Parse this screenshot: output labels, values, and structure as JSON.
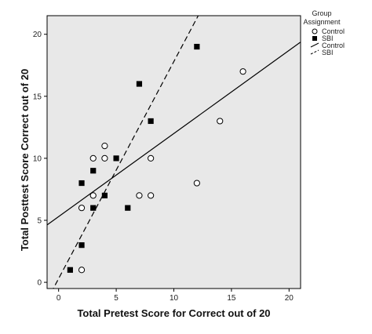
{
  "chart_data": {
    "type": "scatter",
    "xlabel": "Total Pretest Score for Correct out of 20",
    "ylabel": "Total Posttest Score Correct out of 20",
    "xlim": [
      -1,
      21
    ],
    "ylim": [
      -0.5,
      21.5
    ],
    "x_ticks": [
      0,
      5,
      10,
      15,
      20
    ],
    "y_ticks": [
      0,
      5,
      10,
      15,
      20
    ],
    "grid": false,
    "background": "#e8e8e8",
    "legend": {
      "title_line1": "Group",
      "title_line2": "Assignment",
      "placement": "right",
      "entries": [
        {
          "label": "Control",
          "kind": "marker",
          "symbol": "open-circle"
        },
        {
          "label": "SBI",
          "kind": "marker",
          "symbol": "filled-square"
        },
        {
          "label": "Control",
          "kind": "line",
          "style": "solid"
        },
        {
          "label": "SBI",
          "kind": "line",
          "style": "dashed"
        }
      ]
    },
    "series": [
      {
        "name": "Control",
        "marker": "open-circle",
        "points": [
          {
            "x": 2,
            "y": 1
          },
          {
            "x": 2,
            "y": 6
          },
          {
            "x": 3,
            "y": 7
          },
          {
            "x": 3,
            "y": 10
          },
          {
            "x": 4,
            "y": 10
          },
          {
            "x": 4,
            "y": 11
          },
          {
            "x": 7,
            "y": 7
          },
          {
            "x": 8,
            "y": 7
          },
          {
            "x": 8,
            "y": 10
          },
          {
            "x": 12,
            "y": 8
          },
          {
            "x": 14,
            "y": 13
          },
          {
            "x": 16,
            "y": 17
          }
        ],
        "fit": {
          "style": "solid",
          "intercept": 5.3,
          "slope": 0.67
        }
      },
      {
        "name": "SBI",
        "marker": "filled-square",
        "points": [
          {
            "x": 1,
            "y": 1
          },
          {
            "x": 2,
            "y": 3
          },
          {
            "x": 2,
            "y": 8
          },
          {
            "x": 3,
            "y": 6
          },
          {
            "x": 3,
            "y": 9
          },
          {
            "x": 4,
            "y": 7
          },
          {
            "x": 5,
            "y": 10
          },
          {
            "x": 6,
            "y": 6
          },
          {
            "x": 7,
            "y": 16
          },
          {
            "x": 8,
            "y": 13
          },
          {
            "x": 12,
            "y": 19
          }
        ],
        "fit": {
          "style": "dashed",
          "intercept": 0.3,
          "slope": 1.75
        }
      }
    ]
  }
}
